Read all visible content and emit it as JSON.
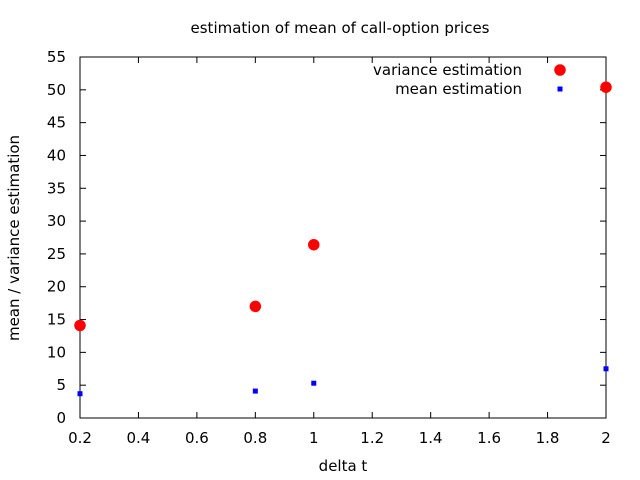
{
  "chart_data": {
    "type": "scatter",
    "title": "estimation of mean of call-option prices",
    "xlabel": "delta t",
    "ylabel": "mean / variance estimation",
    "xlim": [
      0.2,
      2
    ],
    "ylim": [
      0,
      55
    ],
    "xticks": [
      0.2,
      0.4,
      0.6,
      0.8,
      1,
      1.2,
      1.4,
      1.6,
      1.8,
      2
    ],
    "yticks": [
      0,
      5,
      10,
      15,
      20,
      25,
      30,
      35,
      40,
      45,
      50,
      55
    ],
    "grid": false,
    "legend_position": "top-right",
    "series": [
      {
        "name": "variance estimation",
        "color": "#ff0000",
        "marker": "circle",
        "points": [
          {
            "x": 0.2,
            "y": 14.1
          },
          {
            "x": 0.8,
            "y": 17.0
          },
          {
            "x": 1.0,
            "y": 26.4
          },
          {
            "x": 2.0,
            "y": 50.4
          }
        ]
      },
      {
        "name": "mean estimation",
        "color": "#0000ff",
        "marker": "small-square",
        "points": [
          {
            "x": 0.2,
            "y": 3.7
          },
          {
            "x": 0.8,
            "y": 4.1
          },
          {
            "x": 1.0,
            "y": 5.3
          },
          {
            "x": 2.0,
            "y": 7.5
          }
        ]
      }
    ]
  }
}
